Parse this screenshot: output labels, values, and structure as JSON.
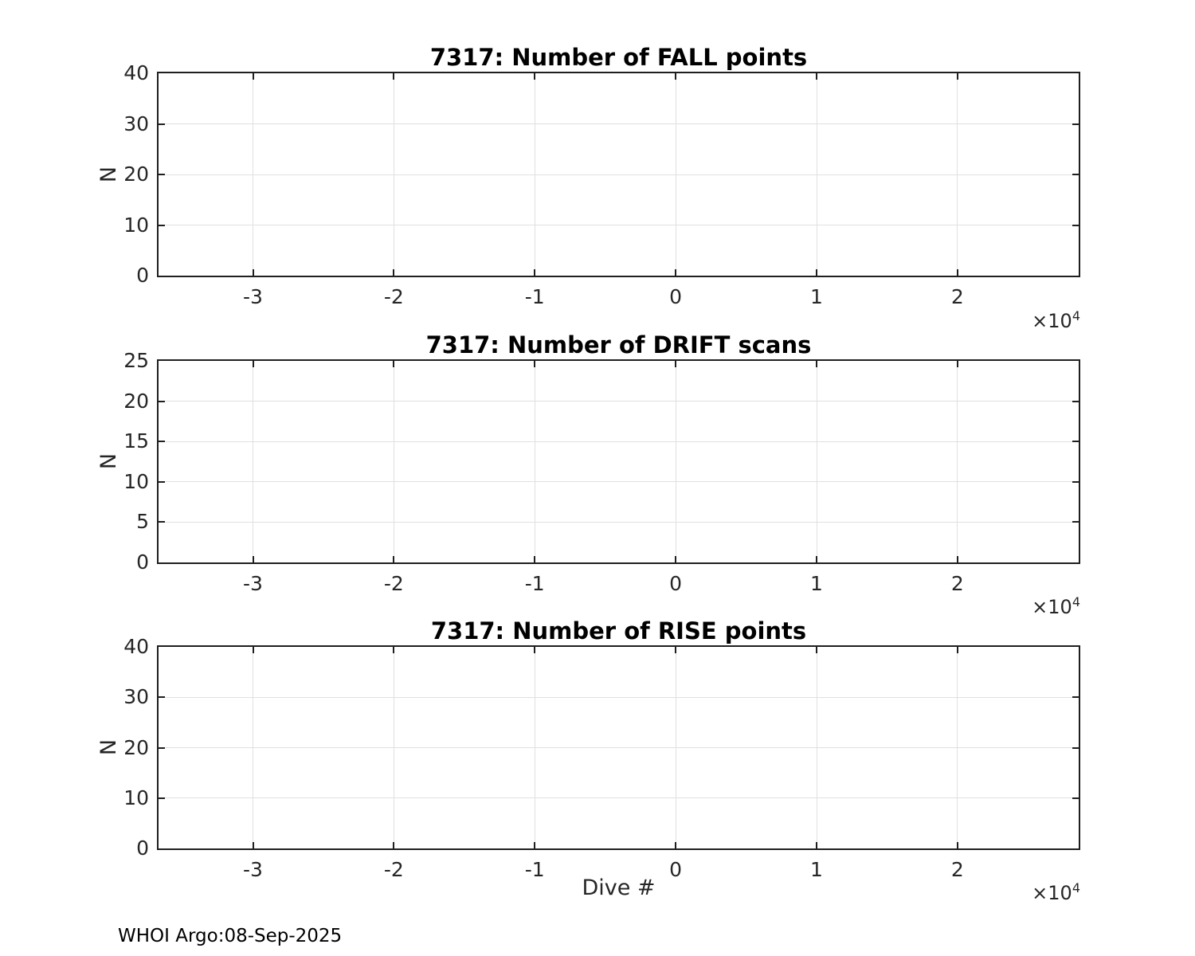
{
  "figure": {
    "footer": "WHOI Argo:08-Sep-2025",
    "background": "#ffffff",
    "title_color": "#000000",
    "text_color": "#262626",
    "axis_color": "#1f1f1f",
    "grid_color": "#e0e0e0"
  },
  "chart_data": [
    {
      "type": "line",
      "title": "7317: Number of FALL points",
      "xlabel": "",
      "ylabel": "N",
      "xlim": [
        -36700,
        28600
      ],
      "ylim": [
        0,
        40
      ],
      "xticks": [
        -30000,
        -20000,
        -10000,
        0,
        10000,
        20000
      ],
      "xtick_labels": [
        "-3",
        "-2",
        "-1",
        "0",
        "1",
        "2"
      ],
      "yticks": [
        0,
        10,
        20,
        30,
        40
      ],
      "ytick_labels": [
        "0",
        "10",
        "20",
        "30",
        "40"
      ],
      "x_multiplier": {
        "base": "×10",
        "exp": "4"
      },
      "grid": true,
      "legend": null,
      "series": []
    },
    {
      "type": "line",
      "title": "7317: Number of DRIFT scans",
      "xlabel": "",
      "ylabel": "N",
      "xlim": [
        -36700,
        28600
      ],
      "ylim": [
        0,
        25
      ],
      "xticks": [
        -30000,
        -20000,
        -10000,
        0,
        10000,
        20000
      ],
      "xtick_labels": [
        "-3",
        "-2",
        "-1",
        "0",
        "1",
        "2"
      ],
      "yticks": [
        0,
        5,
        10,
        15,
        20,
        25
      ],
      "ytick_labels": [
        "0",
        "5",
        "10",
        "15",
        "20",
        "25"
      ],
      "x_multiplier": {
        "base": "×10",
        "exp": "4"
      },
      "grid": true,
      "legend": null,
      "series": []
    },
    {
      "type": "line",
      "title": "7317: Number of RISE points",
      "xlabel": "Dive #",
      "ylabel": "N",
      "xlim": [
        -36700,
        28600
      ],
      "ylim": [
        0,
        40
      ],
      "xticks": [
        -30000,
        -20000,
        -10000,
        0,
        10000,
        20000
      ],
      "xtick_labels": [
        "-3",
        "-2",
        "-1",
        "0",
        "1",
        "2"
      ],
      "yticks": [
        0,
        10,
        20,
        30,
        40
      ],
      "ytick_labels": [
        "0",
        "10",
        "20",
        "30",
        "40"
      ],
      "x_multiplier": {
        "base": "×10",
        "exp": "4"
      },
      "grid": true,
      "legend": null,
      "series": []
    }
  ]
}
